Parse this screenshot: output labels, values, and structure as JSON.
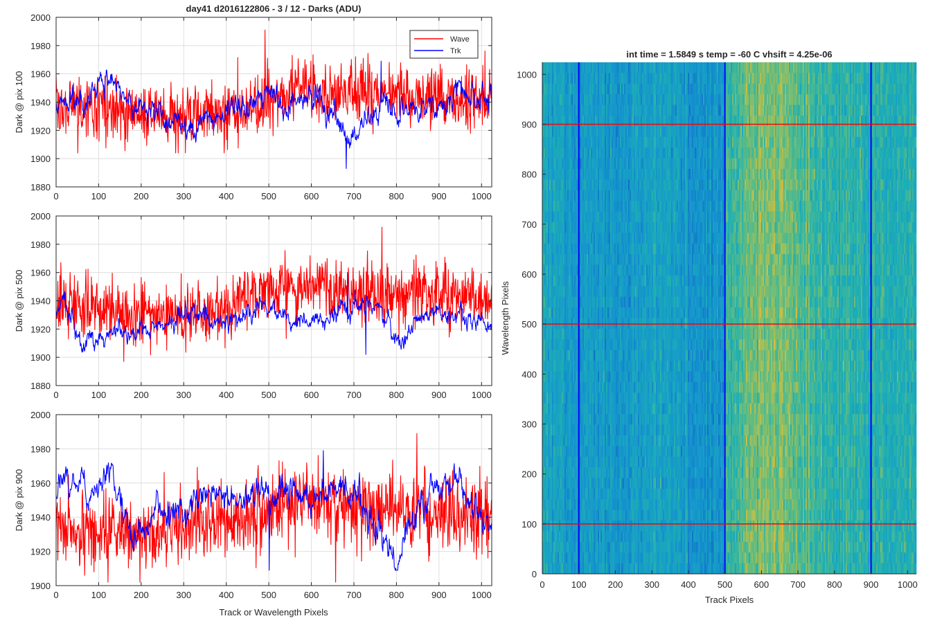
{
  "figure": {
    "title": "day41 d2016122806 - 3 / 12 - Darks (ADU)",
    "xlabel": "Track or Wavelength Pixels"
  },
  "chart_data": [
    {
      "type": "line",
      "panel": "top-left",
      "ylabel": "Dark @ pix 100",
      "xlim": [
        0,
        1024
      ],
      "ylim": [
        1880,
        2000
      ],
      "xticks": [
        0,
        100,
        200,
        300,
        400,
        500,
        600,
        700,
        800,
        900,
        1000
      ],
      "yticks": [
        1880,
        1900,
        1920,
        1940,
        1960,
        1980,
        2000
      ],
      "grid": true,
      "legend": {
        "position": "top-right",
        "entries": [
          "Wave",
          "Trk"
        ]
      },
      "series": [
        {
          "name": "Wave",
          "color": "#ff0000",
          "mean": 1935,
          "noise": 11,
          "anchors_x": [
            0,
            100,
            200,
            300,
            400,
            450,
            500,
            560,
            600,
            650,
            700,
            750,
            800,
            900,
            1000,
            1024
          ],
          "anchors_y": [
            1935,
            1937,
            1932,
            1930,
            1933,
            1936,
            1940,
            1945,
            1950,
            1948,
            1947,
            1946,
            1945,
            1943,
            1942,
            1940
          ],
          "min": 1904,
          "max": 1991
        },
        {
          "name": "Trk",
          "color": "#0000ff",
          "mean": 1937,
          "noise": 5,
          "anchors_x": [
            0,
            60,
            120,
            180,
            250,
            330,
            400,
            500,
            560,
            610,
            650,
            700,
            760,
            900,
            980,
            1024
          ],
          "anchors_y": [
            1938,
            1943,
            1955,
            1940,
            1932,
            1920,
            1933,
            1940,
            1940,
            1950,
            1930,
            1912,
            1936,
            1937,
            1946,
            1942
          ],
          "min": 1893,
          "max": 1969
        }
      ]
    },
    {
      "type": "line",
      "panel": "middle-left",
      "ylabel": "Dark @ pix 500",
      "xlim": [
        0,
        1024
      ],
      "ylim": [
        1880,
        2000
      ],
      "xticks": [
        0,
        100,
        200,
        300,
        400,
        500,
        600,
        700,
        800,
        900,
        1000
      ],
      "yticks": [
        1880,
        1900,
        1920,
        1940,
        1960,
        1980,
        2000
      ],
      "grid": true,
      "series": [
        {
          "name": "Wave",
          "color": "#ff0000",
          "mean": 1937,
          "noise": 11,
          "anchors_x": [
            0,
            100,
            200,
            300,
            400,
            460,
            560,
            620,
            700,
            800,
            900,
            1024
          ],
          "anchors_y": [
            1940,
            1935,
            1932,
            1928,
            1933,
            1945,
            1947,
            1948,
            1946,
            1945,
            1942,
            1944
          ],
          "min": 1897,
          "max": 1992
        },
        {
          "name": "Trk",
          "color": "#0000ff",
          "mean": 1925,
          "noise": 4,
          "anchors_x": [
            0,
            20,
            60,
            120,
            200,
            280,
            330,
            400,
            480,
            550,
            600,
            680,
            760,
            800,
            860,
            940,
            1024
          ],
          "anchors_y": [
            1935,
            1945,
            1910,
            1918,
            1920,
            1927,
            1932,
            1925,
            1935,
            1928,
            1925,
            1935,
            1937,
            1908,
            1927,
            1928,
            1924
          ],
          "min": 1902,
          "max": 1960
        }
      ]
    },
    {
      "type": "line",
      "panel": "bottom-left",
      "ylabel": "Dark @ pix 900",
      "xlim": [
        0,
        1024
      ],
      "ylim": [
        1900,
        2000
      ],
      "xticks": [
        0,
        100,
        200,
        300,
        400,
        500,
        600,
        700,
        800,
        900,
        1000
      ],
      "yticks": [
        1900,
        1920,
        1940,
        1960,
        1980,
        2000
      ],
      "grid": true,
      "series": [
        {
          "name": "Wave",
          "color": "#ff0000",
          "mean": 1940,
          "noise": 11,
          "anchors_x": [
            0,
            100,
            200,
            300,
            400,
            500,
            560,
            620,
            700,
            800,
            900,
            1024
          ],
          "anchors_y": [
            1935,
            1932,
            1930,
            1932,
            1938,
            1943,
            1948,
            1950,
            1947,
            1945,
            1942,
            1940
          ],
          "min": 1902,
          "max": 1989
        },
        {
          "name": "Trk",
          "color": "#0000ff",
          "mean": 1948,
          "noise": 5,
          "anchors_x": [
            0,
            40,
            80,
            130,
            180,
            240,
            300,
            360,
            420,
            470,
            520,
            600,
            680,
            730,
            800,
            850,
            930,
            1024
          ],
          "anchors_y": [
            1955,
            1962,
            1955,
            1968,
            1925,
            1942,
            1942,
            1955,
            1950,
            1955,
            1952,
            1950,
            1955,
            1945,
            1915,
            1945,
            1965,
            1938
          ],
          "min": 1909,
          "max": 1979
        }
      ]
    },
    {
      "type": "heatmap",
      "panel": "right",
      "title": "int time = 1.5849 s    temp = -60 C    vhsift = 4.25e-06",
      "xlabel": "Track Pixels",
      "ylabel": "Wavelength Pixels",
      "xlim": [
        0,
        1024
      ],
      "ylim": [
        0,
        1024
      ],
      "xticks": [
        0,
        100,
        200,
        300,
        400,
        500,
        600,
        700,
        800,
        900,
        1000
      ],
      "yticks": [
        0,
        100,
        200,
        300,
        400,
        500,
        600,
        700,
        800,
        900,
        1000
      ],
      "colormap": "parula",
      "columns_high": {
        "from": 500,
        "to": 1024,
        "peak": 630
      },
      "vertical_lines": {
        "color": "#0000ff",
        "x": [
          100,
          500,
          900
        ]
      },
      "horizontal_lines": {
        "color": "#ff0000",
        "y": [
          100,
          500,
          900
        ]
      }
    }
  ]
}
